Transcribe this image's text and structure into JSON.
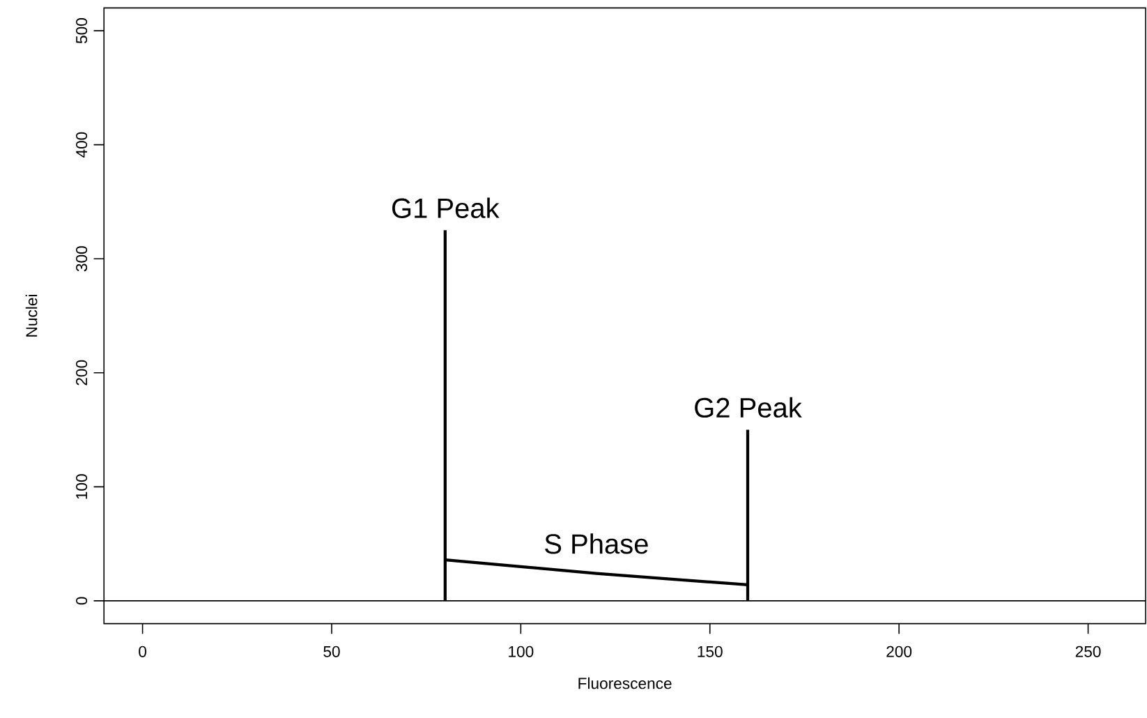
{
  "chart_data": {
    "type": "line",
    "xlabel": "Fluorescence",
    "ylabel": "Nuclei",
    "xlim": [
      -10.2,
      265.2
    ],
    "ylim": [
      -20,
      520
    ],
    "xticks": [
      0,
      50,
      100,
      150,
      200,
      250
    ],
    "yticks": [
      0,
      100,
      200,
      300,
      400,
      500
    ],
    "marker": "none",
    "line_style": "solid",
    "series": [
      {
        "color": "#000000",
        "x": [
          80,
          80
        ],
        "values": [
          0,
          325
        ]
      },
      {
        "color": "#000000",
        "x": [
          80,
          100,
          120,
          140,
          160
        ],
        "values": [
          36,
          30,
          24,
          19,
          14
        ]
      },
      {
        "color": "#000000",
        "x": [
          160,
          160
        ],
        "values": [
          0,
          150
        ]
      }
    ],
    "ref_lines": [
      {
        "axis": "y",
        "value": 0,
        "color": "#000000"
      }
    ],
    "annotations": [
      "G1 Peak",
      "S Phase",
      "G2 Peak"
    ]
  }
}
